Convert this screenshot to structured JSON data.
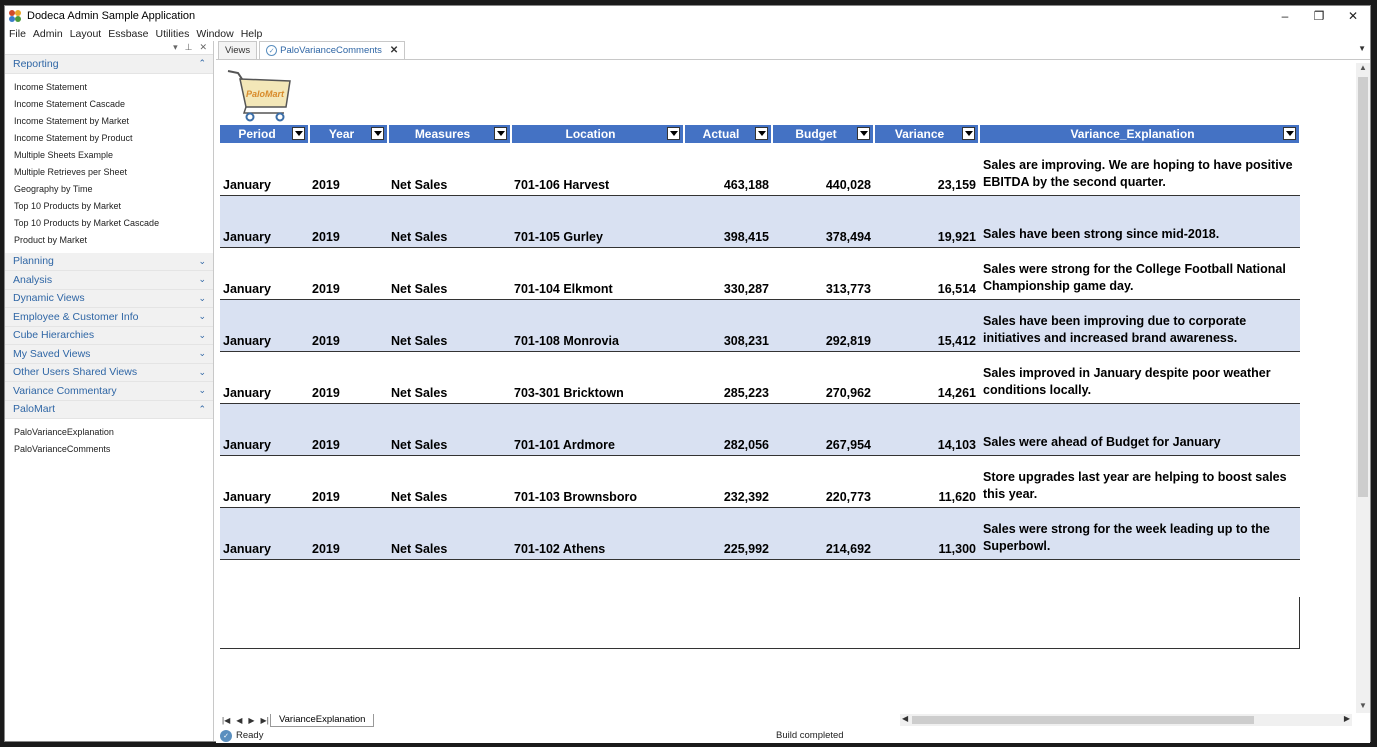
{
  "app": {
    "title": "Dodeca Admin Sample Application",
    "controls": {
      "minimize": "–",
      "restore": "❐",
      "close": "✕"
    }
  },
  "menu": [
    "File",
    "Admin",
    "Layout",
    "Essbase",
    "Utilities",
    "Window",
    "Help"
  ],
  "sidebar": {
    "header_icons": [
      "▾",
      "⊥",
      "✕"
    ],
    "groups": [
      {
        "label": "Reporting",
        "expanded": true,
        "items": [
          "Income Statement",
          "Income Statement Cascade",
          "Income Statement by Market",
          "Income Statement by Product",
          "Multiple Sheets Example",
          "Multiple Retrieves per Sheet",
          "Geography by Time",
          "Top 10 Products by Market",
          "Top 10 Products by Market Cascade",
          "Product by Market"
        ]
      },
      {
        "label": "Planning",
        "expanded": false,
        "items": []
      },
      {
        "label": "Analysis",
        "expanded": false,
        "items": []
      },
      {
        "label": "Dynamic Views",
        "expanded": false,
        "items": []
      },
      {
        "label": "Employee & Customer Info",
        "expanded": false,
        "items": []
      },
      {
        "label": "Cube Hierarchies",
        "expanded": false,
        "items": []
      },
      {
        "label": "My Saved Views",
        "expanded": false,
        "items": []
      },
      {
        "label": "Other Users Shared Views",
        "expanded": false,
        "items": []
      },
      {
        "label": "Variance Commentary",
        "expanded": false,
        "items": []
      },
      {
        "label": "PaloMart",
        "expanded": true,
        "items": [
          "PaloVarianceExplanation",
          "PaloVarianceComments"
        ]
      }
    ]
  },
  "tabs": {
    "views_label": "Views",
    "active_tab": "PaloVarianceComments"
  },
  "logo_text": "PaloMart",
  "grid": {
    "headers": [
      "Period",
      "Year",
      "Measures",
      "Location",
      "Actual",
      "Budget",
      "Variance",
      "Variance_Explanation"
    ],
    "rows": [
      [
        "January",
        "2019",
        "Net Sales",
        "701-106 Harvest",
        "463,188",
        "440,028",
        "23,159",
        "Sales are improving. We are hoping to have positive EBITDA by the second quarter."
      ],
      [
        "January",
        "2019",
        "Net Sales",
        "701-105 Gurley",
        "398,415",
        "378,494",
        "19,921",
        "Sales have been strong since mid-2018."
      ],
      [
        "January",
        "2019",
        "Net Sales",
        "701-104 Elkmont",
        "330,287",
        "313,773",
        "16,514",
        "Sales were strong for the College Football National Championship game day."
      ],
      [
        "January",
        "2019",
        "Net Sales",
        "701-108 Monrovia",
        "308,231",
        "292,819",
        "15,412",
        "Sales have been improving due to corporate initiatives and increased brand awareness."
      ],
      [
        "January",
        "2019",
        "Net Sales",
        "703-301 Bricktown",
        "285,223",
        "270,962",
        "14,261",
        "Sales improved in January despite poor weather conditions locally."
      ],
      [
        "January",
        "2019",
        "Net Sales",
        "701-101 Ardmore",
        "282,056",
        "267,954",
        "14,103",
        "Sales were ahead of Budget for January"
      ],
      [
        "January",
        "2019",
        "Net Sales",
        "701-103 Brownsboro",
        "232,392",
        "220,773",
        "11,620",
        "Store upgrades last year are helping to boost sales this year."
      ],
      [
        "January",
        "2019",
        "Net Sales",
        "701-102 Athens",
        "225,992",
        "214,692",
        "11,300",
        "Sales were strong for the week leading up to the Superbowl."
      ]
    ]
  },
  "sheet_tab": "VarianceExplanation",
  "status": {
    "left": "Ready",
    "center": "Build completed"
  },
  "colors": {
    "header_bg": "#4472c4",
    "alt_row": "#d9e1f2",
    "link_blue": "#2f66a5"
  }
}
